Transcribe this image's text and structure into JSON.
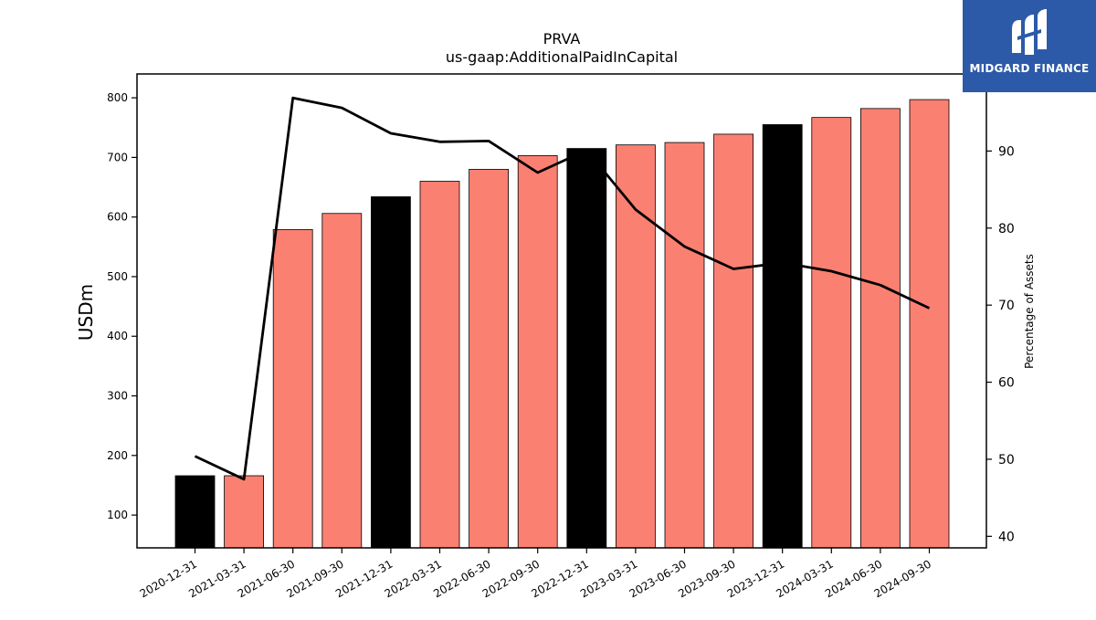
{
  "chart_data": {
    "type": "bar",
    "title": "PRVA",
    "subtitle": "us-gaap:AdditionalPaidInCapital",
    "ylabel": "USDm",
    "y2label": "Percentage of Assets",
    "ylim": [
      45,
      840
    ],
    "y2lim": [
      38.5,
      100
    ],
    "yticks": [
      100,
      200,
      300,
      400,
      500,
      600,
      700,
      800
    ],
    "y2ticks": [
      40,
      50,
      60,
      70,
      80,
      90
    ],
    "categories": [
      "2020-12-31",
      "2021-03-31",
      "2021-06-30",
      "2021-09-30",
      "2021-12-31",
      "2022-03-31",
      "2022-06-30",
      "2022-09-30",
      "2022-12-31",
      "2023-03-31",
      "2023-06-30",
      "2023-09-30",
      "2023-12-31",
      "2024-03-31",
      "2024-06-30",
      "2024-09-30"
    ],
    "series": [
      {
        "values": [
          166,
          166,
          579,
          606,
          634,
          660,
          680,
          703,
          715,
          721,
          725,
          739,
          755,
          767,
          782,
          797
        ],
        "bar_colors": [
          "#000000",
          "#fa8072",
          "#fa8072",
          "#fa8072",
          "#000000",
          "#fa8072",
          "#fa8072",
          "#fa8072",
          "#000000",
          "#fa8072",
          "#fa8072",
          "#fa8072",
          "#000000",
          "#fa8072",
          "#fa8072",
          "#fa8072"
        ]
      },
      {
        "axis": "right",
        "type": "line",
        "color": "#000000",
        "values": [
          50.4,
          47.4,
          96.9,
          95.6,
          92.3,
          91.2,
          91.3,
          87.2,
          90.1,
          82.4,
          77.6,
          74.7,
          75.5,
          74.4,
          72.6,
          69.6
        ]
      }
    ],
    "grid": false,
    "legend": "none"
  },
  "logo": {
    "text": "MIDGARD FINANCE"
  },
  "colors": {
    "bar_primary": "#fa8072",
    "bar_highlight": "#000000",
    "logo_bg": "#2c5aa8"
  }
}
